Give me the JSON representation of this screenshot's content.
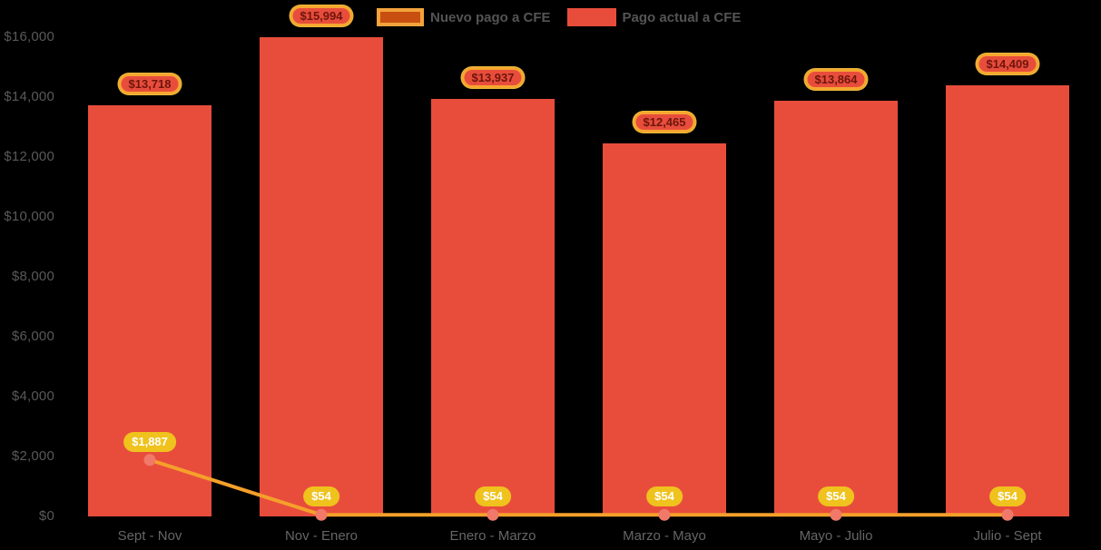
{
  "chart_data": {
    "type": "bar",
    "title": "",
    "xlabel": "",
    "ylabel": "",
    "categories": [
      "Sept - Nov",
      "Nov - Enero",
      "Enero - Marzo",
      "Marzo - Mayo",
      "Mayo - Julio",
      "Julio - Sept"
    ],
    "series": [
      {
        "name": "Nuevo pago a CFE",
        "type": "line",
        "color": "#F5A02A",
        "values": [
          1887,
          54,
          54,
          54,
          54,
          54
        ],
        "labels": [
          "$1,887",
          "$54",
          "$54",
          "$54",
          "$54",
          "$54"
        ]
      },
      {
        "name": "Pago actual a CFE",
        "type": "bar",
        "color": "#E84D3C",
        "values": [
          13718,
          15994,
          13937,
          12465,
          13864,
          14409
        ],
        "labels": [
          "$13,718",
          "$15,994",
          "$13,937",
          "$12,465",
          "$13,864",
          "$14,409"
        ]
      }
    ],
    "ylim": [
      0,
      16000
    ],
    "y_ticks": [
      {
        "value": 0,
        "label": "$0"
      },
      {
        "value": 2000,
        "label": "$2,000"
      },
      {
        "value": 4000,
        "label": "$4,000"
      },
      {
        "value": 6000,
        "label": "$6,000"
      },
      {
        "value": 8000,
        "label": "$8,000"
      },
      {
        "value": 10000,
        "label": "$10,000"
      },
      {
        "value": 12000,
        "label": "$12,000"
      },
      {
        "value": 14000,
        "label": "$14,000"
      },
      {
        "value": 16000,
        "label": "$16,000"
      }
    ],
    "grid": false,
    "legend_position": "top",
    "colors": {
      "background": "#000000",
      "bar": "#E84D3C",
      "line": "#F5A02A",
      "marker": "#F0796A",
      "gold_pill_bg": "#EFC21D",
      "gold_pill_text": "#FFFFFF",
      "red_pill_bg": "#E84D3C",
      "red_pill_border": "#F5A62F",
      "red_pill_text": "#6E150C",
      "legend_line_swatch_border": "#F2A33C",
      "legend_line_swatch_fill": "#C94F10",
      "axis_text": "#595959",
      "category_text": "#666666",
      "legend_text": "#545454"
    }
  }
}
